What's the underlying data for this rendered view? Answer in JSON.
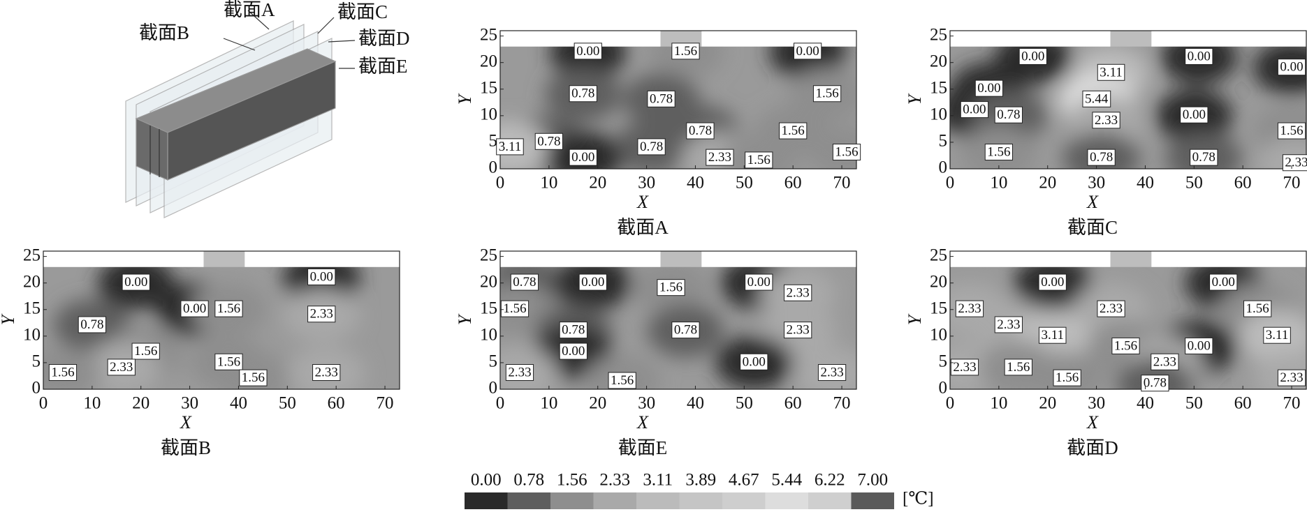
{
  "schematic": {
    "labels": [
      "截面A",
      "截面B",
      "截面C",
      "截面D",
      "截面E"
    ]
  },
  "colorbar": {
    "levels": [
      {
        "value": 0,
        "label": "0.00"
      },
      {
        "value": 0.78,
        "label": "0.78"
      },
      {
        "value": 1.56,
        "label": "1.56"
      },
      {
        "value": 2.33,
        "label": "2.33"
      },
      {
        "value": 3.11,
        "label": "3.11"
      },
      {
        "value": 3.89,
        "label": "3.89"
      },
      {
        "value": 4.67,
        "label": "4.67"
      },
      {
        "value": 5.44,
        "label": "5.44"
      },
      {
        "value": 6.22,
        "label": "6.22"
      },
      {
        "value": 7,
        "label": "7.00"
      }
    ],
    "colors": [
      "#2a2a2a",
      "#5e5e5e",
      "#8e8e8e",
      "#a9a9a9",
      "#bbbbbb",
      "#c5c5c5",
      "#cecece",
      "#dddddd",
      "#cfcfcf",
      "#5a5a5a"
    ],
    "unit": "[℃]"
  },
  "chart_data": [
    {
      "type": "contour",
      "title": "截面A",
      "x_label": "X",
      "y_label": "Y",
      "xlim": [
        0,
        73
      ],
      "ylim": [
        0,
        26
      ],
      "xticks": [
        0,
        10,
        20,
        30,
        40,
        50,
        60,
        70
      ],
      "yticks": [
        0,
        5,
        10,
        15,
        20,
        25
      ],
      "contour_labels": [
        {
          "x": 18,
          "y": 22,
          "value": 0,
          "label": "0.00"
        },
        {
          "x": 38,
          "y": 22,
          "value": 1.56,
          "label": "1.56"
        },
        {
          "x": 63,
          "y": 22,
          "value": 0,
          "label": "0.00"
        },
        {
          "x": 17,
          "y": 14,
          "value": 0.78,
          "label": "0.78"
        },
        {
          "x": 33,
          "y": 13,
          "value": 0.78,
          "label": "0.78"
        },
        {
          "x": 67,
          "y": 14,
          "value": 1.56,
          "label": "1.56"
        },
        {
          "x": 10,
          "y": 5,
          "value": 0.78,
          "label": "0.78"
        },
        {
          "x": 41,
          "y": 7,
          "value": 0.78,
          "label": "0.78"
        },
        {
          "x": 60,
          "y": 7,
          "value": 1.56,
          "label": "1.56"
        },
        {
          "x": 31,
          "y": 4,
          "value": 0.78,
          "label": "0.78"
        },
        {
          "x": 17,
          "y": 2,
          "value": 0,
          "label": "0.00"
        },
        {
          "x": 45,
          "y": 2,
          "value": 2.33,
          "label": "2.33"
        },
        {
          "x": 53,
          "y": 1.5,
          "value": 1.56,
          "label": "1.56"
        },
        {
          "x": 71,
          "y": 3,
          "value": 1.56,
          "label": "1.56"
        },
        {
          "x": 2,
          "y": 4,
          "value": 3.11,
          "label": "3.11"
        }
      ]
    },
    {
      "type": "contour",
      "title": "截面C",
      "x_label": "X",
      "y_label": "Y",
      "xlim": [
        0,
        73
      ],
      "ylim": [
        0,
        26
      ],
      "xticks": [
        0,
        10,
        20,
        30,
        40,
        50,
        60,
        70
      ],
      "yticks": [
        0,
        5,
        10,
        15,
        20,
        25
      ],
      "contour_labels": [
        {
          "x": 17,
          "y": 21,
          "value": 0,
          "label": "0.00"
        },
        {
          "x": 51,
          "y": 21,
          "value": 0,
          "label": "0.00"
        },
        {
          "x": 70,
          "y": 19,
          "value": 0,
          "label": "0.00"
        },
        {
          "x": 8,
          "y": 15,
          "value": 0,
          "label": "0.00"
        },
        {
          "x": 33,
          "y": 18,
          "value": 3.11,
          "label": "3.11"
        },
        {
          "x": 30,
          "y": 13,
          "value": 5.44,
          "label": "5.44"
        },
        {
          "x": 5,
          "y": 11,
          "value": 0,
          "label": "0.00"
        },
        {
          "x": 12,
          "y": 10,
          "value": 0.78,
          "label": "0.78"
        },
        {
          "x": 50,
          "y": 10,
          "value": 0,
          "label": "0.00"
        },
        {
          "x": 32,
          "y": 9,
          "value": 2.33,
          "label": "2.33"
        },
        {
          "x": 70,
          "y": 7,
          "value": 1.56,
          "label": "1.56"
        },
        {
          "x": 10,
          "y": 3,
          "value": 1.56,
          "label": "1.56"
        },
        {
          "x": 31,
          "y": 2,
          "value": 0.78,
          "label": "0.78"
        },
        {
          "x": 52,
          "y": 2,
          "value": 0.78,
          "label": "0.78"
        },
        {
          "x": 71,
          "y": 1,
          "value": 2.33,
          "label": "2.33"
        }
      ]
    },
    {
      "type": "contour",
      "title": "截面B",
      "x_label": "X",
      "y_label": "Y",
      "xlim": [
        0,
        73
      ],
      "ylim": [
        0,
        26
      ],
      "xticks": [
        0,
        10,
        20,
        30,
        40,
        50,
        60,
        70
      ],
      "yticks": [
        0,
        5,
        10,
        15,
        20,
        25
      ],
      "contour_labels": [
        {
          "x": 19,
          "y": 20,
          "value": 0,
          "label": "0.00"
        },
        {
          "x": 57,
          "y": 21,
          "value": 0,
          "label": "0.00"
        },
        {
          "x": 31,
          "y": 15,
          "value": 0,
          "label": "0.00"
        },
        {
          "x": 38,
          "y": 15,
          "value": 1.56,
          "label": "1.56"
        },
        {
          "x": 57,
          "y": 14,
          "value": 2.33,
          "label": "2.33"
        },
        {
          "x": 10,
          "y": 12,
          "value": 0.78,
          "label": "0.78"
        },
        {
          "x": 21,
          "y": 7,
          "value": 1.56,
          "label": "1.56"
        },
        {
          "x": 38,
          "y": 5,
          "value": 1.56,
          "label": "1.56"
        },
        {
          "x": 16,
          "y": 4,
          "value": 2.33,
          "label": "2.33"
        },
        {
          "x": 43,
          "y": 2,
          "value": 1.56,
          "label": "1.56"
        },
        {
          "x": 58,
          "y": 3,
          "value": 2.33,
          "label": "2.33"
        },
        {
          "x": 4,
          "y": 3,
          "value": 1.56,
          "label": "1.56"
        }
      ]
    },
    {
      "type": "contour",
      "title": "截面E",
      "x_label": "X",
      "y_label": "Y",
      "xlim": [
        0,
        73
      ],
      "ylim": [
        0,
        26
      ],
      "xticks": [
        0,
        10,
        20,
        30,
        40,
        50,
        60,
        70
      ],
      "yticks": [
        0,
        5,
        10,
        15,
        20,
        25
      ],
      "contour_labels": [
        {
          "x": 5,
          "y": 20,
          "value": 0.78,
          "label": "0.78"
        },
        {
          "x": 19,
          "y": 20,
          "value": 0,
          "label": "0.00"
        },
        {
          "x": 53,
          "y": 20,
          "value": 0,
          "label": "0.00"
        },
        {
          "x": 35,
          "y": 19,
          "value": 1.56,
          "label": "1.56"
        },
        {
          "x": 61,
          "y": 18,
          "value": 2.33,
          "label": "2.33"
        },
        {
          "x": 3,
          "y": 15,
          "value": 1.56,
          "label": "1.56"
        },
        {
          "x": 15,
          "y": 11,
          "value": 0.78,
          "label": "0.78"
        },
        {
          "x": 38,
          "y": 11,
          "value": 0.78,
          "label": "0.78"
        },
        {
          "x": 61,
          "y": 11,
          "value": 2.33,
          "label": "2.33"
        },
        {
          "x": 15,
          "y": 7,
          "value": 0,
          "label": "0.00"
        },
        {
          "x": 52,
          "y": 5,
          "value": 0,
          "label": "0.00"
        },
        {
          "x": 4,
          "y": 3,
          "value": 2.33,
          "label": "2.33"
        },
        {
          "x": 25,
          "y": 1.5,
          "value": 1.56,
          "label": "1.56"
        },
        {
          "x": 68,
          "y": 3,
          "value": 2.33,
          "label": "2.33"
        }
      ]
    },
    {
      "type": "contour",
      "title": "截面D",
      "x_label": "X",
      "y_label": "Y",
      "xlim": [
        0,
        73
      ],
      "ylim": [
        0,
        26
      ],
      "xticks": [
        0,
        10,
        20,
        30,
        40,
        50,
        60,
        70
      ],
      "yticks": [
        0,
        5,
        10,
        15,
        20,
        25
      ],
      "contour_labels": [
        {
          "x": 21,
          "y": 20,
          "value": 0,
          "label": "0.00"
        },
        {
          "x": 56,
          "y": 20,
          "value": 0,
          "label": "0.00"
        },
        {
          "x": 4,
          "y": 15,
          "value": 2.33,
          "label": "2.33"
        },
        {
          "x": 33,
          "y": 15,
          "value": 2.33,
          "label": "2.33"
        },
        {
          "x": 63,
          "y": 15,
          "value": 1.56,
          "label": "1.56"
        },
        {
          "x": 12,
          "y": 12,
          "value": 2.33,
          "label": "2.33"
        },
        {
          "x": 21,
          "y": 10,
          "value": 3.11,
          "label": "3.11"
        },
        {
          "x": 67,
          "y": 10,
          "value": 3.11,
          "label": "3.11"
        },
        {
          "x": 36,
          "y": 8,
          "value": 1.56,
          "label": "1.56"
        },
        {
          "x": 51,
          "y": 8,
          "value": 0,
          "label": "0.00"
        },
        {
          "x": 44,
          "y": 5,
          "value": 2.33,
          "label": "2.33"
        },
        {
          "x": 3,
          "y": 4,
          "value": 2.33,
          "label": "2.33"
        },
        {
          "x": 14,
          "y": 4,
          "value": 1.56,
          "label": "1.56"
        },
        {
          "x": 24,
          "y": 2,
          "value": 1.56,
          "label": "1.56"
        },
        {
          "x": 42,
          "y": 1,
          "value": 0.78,
          "label": "0.78"
        },
        {
          "x": 70,
          "y": 2,
          "value": 2.33,
          "label": "2.33"
        }
      ]
    }
  ]
}
